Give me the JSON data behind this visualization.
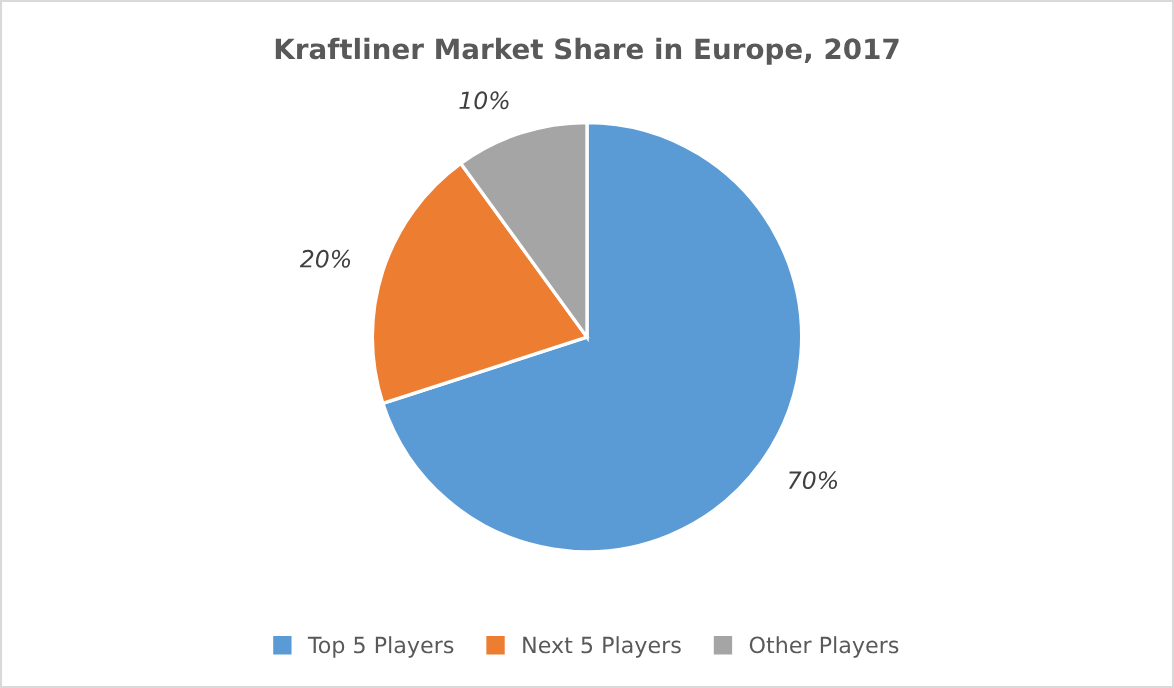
{
  "chart_data": {
    "type": "pie",
    "title": "Kraftliner Market Share in Europe, 2017",
    "categories": [
      "Top 5 Players",
      "Next 5 Players",
      "Other Players"
    ],
    "values": [
      70,
      20,
      10
    ],
    "value_labels": [
      "70%",
      "20%",
      "10%"
    ],
    "colors": [
      "#5b9bd5",
      "#ed7d31",
      "#a5a5a5"
    ],
    "legend": "bottom"
  }
}
